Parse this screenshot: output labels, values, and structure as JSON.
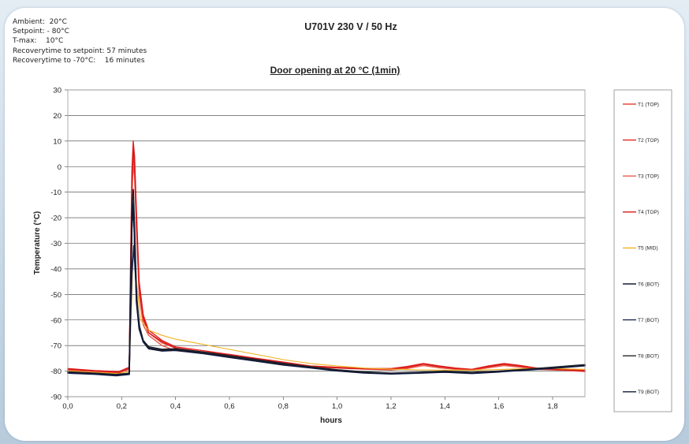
{
  "conditions": [
    "Ambient:  20°C",
    "Setpoint: - 80°C",
    "T-max:    10°C",
    "Recoverytime to setpoint: 57 minutes",
    "Recoverytime to -70°C:    16 minutes"
  ],
  "chart_data": {
    "type": "line",
    "title": "U701V 230 V / 50 Hz",
    "subtitle": "Door opening at  20 °C (1min)",
    "xlabel": "hours",
    "ylabel": "Temperature (°C)",
    "xlim": [
      0,
      1.92
    ],
    "ylim": [
      -90,
      30
    ],
    "xticks": [
      "0,0",
      "0,2",
      "0,4",
      "0,6",
      "0,8",
      "1,0",
      "1,2",
      "1,4",
      "1,6",
      "1,8"
    ],
    "yticks": [
      "30",
      "20",
      "10",
      "0",
      "-10",
      "-20",
      "-30",
      "-40",
      "-50",
      "-60",
      "-70",
      "-80",
      "-90"
    ],
    "grid": "horizontal",
    "legend_position": "right",
    "series": [
      {
        "name": "T1 (TOP)",
        "color": "#e8483c",
        "x": [
          0,
          0.1,
          0.19,
          0.228,
          0.232,
          0.238,
          0.243,
          0.248,
          0.255,
          0.265,
          0.28,
          0.3,
          0.35,
          0.4,
          0.5,
          0.6,
          0.7,
          0.8,
          0.9,
          1.0,
          1.1,
          1.2,
          1.26,
          1.32,
          1.38,
          1.44,
          1.5,
          1.56,
          1.62,
          1.68,
          1.74,
          1.8,
          1.86,
          1.92
        ],
        "y": [
          -79.5,
          -80,
          -80.5,
          -79,
          -50,
          -10,
          3,
          -2,
          -22,
          -48,
          -60,
          -65,
          -69,
          -71,
          -72.5,
          -73.5,
          -75,
          -76.5,
          -78,
          -78.5,
          -79,
          -79.3,
          -78.8,
          -77.3,
          -78.5,
          -79.2,
          -79.5,
          -78.5,
          -77.5,
          -78.3,
          -79.2,
          -79.4,
          -79.7,
          -80
        ]
      },
      {
        "name": "T2 (TOP)",
        "color": "#e02222",
        "x": [
          0,
          0.1,
          0.19,
          0.228,
          0.232,
          0.238,
          0.243,
          0.248,
          0.255,
          0.265,
          0.28,
          0.3,
          0.35,
          0.4,
          0.5,
          0.6,
          0.7,
          0.8,
          0.9,
          1.0,
          1.1,
          1.2,
          1.26,
          1.32,
          1.38,
          1.44,
          1.5,
          1.56,
          1.62,
          1.68,
          1.74,
          1.8,
          1.86,
          1.92
        ],
        "y": [
          -79,
          -79.8,
          -80.2,
          -78.5,
          -45,
          -2,
          10,
          4,
          -18,
          -45,
          -58,
          -64,
          -68,
          -70.5,
          -72,
          -73.5,
          -75,
          -76.5,
          -78,
          -78.6,
          -79,
          -79,
          -78.2,
          -77,
          -78,
          -78.8,
          -79.3,
          -78,
          -77,
          -77.8,
          -78.8,
          -79.2,
          -79.5,
          -79.7
        ]
      },
      {
        "name": "T3 (TOP)",
        "color": "#e85c4c",
        "x": [
          0,
          0.1,
          0.19,
          0.228,
          0.232,
          0.238,
          0.243,
          0.248,
          0.255,
          0.265,
          0.28,
          0.3,
          0.35,
          0.4,
          0.5,
          0.6,
          0.7,
          0.8,
          0.9,
          1.0,
          1.1,
          1.2,
          1.26,
          1.32,
          1.38,
          1.44,
          1.5,
          1.56,
          1.62,
          1.68,
          1.74,
          1.8,
          1.86,
          1.92
        ],
        "y": [
          -79.7,
          -80.3,
          -80.7,
          -79.3,
          -52,
          -12,
          1,
          -4,
          -25,
          -50,
          -62,
          -66,
          -70,
          -72,
          -73,
          -74,
          -75.5,
          -77,
          -78.3,
          -78.8,
          -79.2,
          -79.5,
          -79,
          -77.8,
          -78.7,
          -79.3,
          -79.6,
          -78.7,
          -77.8,
          -78.5,
          -79.3,
          -79.5,
          -79.8,
          -80.2
        ]
      },
      {
        "name": "T4 (TOP)",
        "color": "#d81818",
        "x": [
          0,
          0.1,
          0.19,
          0.228,
          0.232,
          0.238,
          0.243,
          0.248,
          0.255,
          0.265,
          0.28,
          0.3,
          0.35,
          0.4,
          0.5,
          0.6,
          0.7,
          0.8,
          0.9,
          1.0,
          1.1,
          1.2,
          1.26,
          1.32,
          1.38,
          1.44,
          1.5,
          1.56,
          1.62,
          1.68,
          1.74,
          1.8,
          1.86,
          1.92
        ],
        "y": [
          -79.2,
          -79.9,
          -80.4,
          -78.8,
          -48,
          -6,
          7,
          1,
          -20,
          -47,
          -59,
          -65,
          -68.5,
          -71,
          -72.5,
          -73.8,
          -75.2,
          -76.8,
          -78.2,
          -78.7,
          -79.1,
          -79.2,
          -78.5,
          -77.2,
          -78.2,
          -79,
          -79.4,
          -78.3,
          -77.2,
          -78,
          -79,
          -79.3,
          -79.6,
          -79.9
        ]
      },
      {
        "name": "T5 (MID)",
        "color": "#f2b11c",
        "x": [
          0,
          0.1,
          0.19,
          0.228,
          0.235,
          0.242,
          0.247,
          0.255,
          0.27,
          0.3,
          0.35,
          0.4,
          0.5,
          0.6,
          0.7,
          0.8,
          0.9,
          1.0,
          1.1,
          1.2,
          1.3,
          1.4,
          1.5,
          1.6,
          1.7,
          1.8,
          1.92
        ],
        "y": [
          -80,
          -80.5,
          -81,
          -80,
          -60,
          -34,
          -26,
          -45,
          -60,
          -64,
          -66,
          -67.5,
          -69.5,
          -71.5,
          -73.5,
          -75.5,
          -77,
          -78,
          -78.8,
          -79.2,
          -79.5,
          -79.6,
          -79.6,
          -79.4,
          -79,
          -79,
          -79.3
        ]
      },
      {
        "name": "T6 (BOT)",
        "color": "#141b2e",
        "x": [
          0,
          0.1,
          0.18,
          0.228,
          0.232,
          0.238,
          0.243,
          0.248,
          0.255,
          0.265,
          0.28,
          0.3,
          0.35,
          0.4,
          0.5,
          0.6,
          0.7,
          0.8,
          0.9,
          1.0,
          1.1,
          1.2,
          1.3,
          1.4,
          1.5,
          1.6,
          1.7,
          1.8,
          1.92
        ],
        "y": [
          -80.5,
          -81,
          -81.5,
          -81,
          -55,
          -18,
          -9,
          -24,
          -50,
          -62,
          -68,
          -70.5,
          -71.5,
          -71.3,
          -72.5,
          -74,
          -75.5,
          -77,
          -78.3,
          -79.5,
          -80.3,
          -80.8,
          -80.5,
          -80,
          -80.5,
          -80,
          -79.3,
          -78.5,
          -77.5
        ]
      },
      {
        "name": "T7 (BOT)",
        "color": "#1e2a52",
        "x": [
          0,
          0.1,
          0.18,
          0.228,
          0.232,
          0.238,
          0.245,
          0.25,
          0.258,
          0.268,
          0.28,
          0.3,
          0.35,
          0.4,
          0.5,
          0.6,
          0.7,
          0.8,
          0.9,
          1.0,
          1.1,
          1.2,
          1.3,
          1.4,
          1.5,
          1.6,
          1.7,
          1.8,
          1.92
        ],
        "y": [
          -80.8,
          -81.2,
          -81.8,
          -81.3,
          -62,
          -42,
          -31,
          -40,
          -55,
          -64,
          -68.5,
          -71,
          -72,
          -71.8,
          -73,
          -74.5,
          -76,
          -77.5,
          -78.6,
          -79.8,
          -80.6,
          -81,
          -80.7,
          -80.3,
          -80.8,
          -80.2,
          -79.5,
          -78.8,
          -77.8
        ]
      },
      {
        "name": "T8 (BOT)",
        "color": "#262626",
        "x": [
          0,
          0.1,
          0.18,
          0.228,
          0.232,
          0.238,
          0.243,
          0.248,
          0.255,
          0.265,
          0.28,
          0.3,
          0.35,
          0.4,
          0.5,
          0.6,
          0.7,
          0.8,
          0.9,
          1.0,
          1.1,
          1.2,
          1.3,
          1.4,
          1.5,
          1.6,
          1.7,
          1.8,
          1.92
        ],
        "y": [
          -80.3,
          -80.8,
          -81.3,
          -80.8,
          -57,
          -22,
          -13,
          -27,
          -52,
          -63,
          -68.3,
          -70.8,
          -71.8,
          -71.6,
          -72.8,
          -74.2,
          -75.7,
          -77.2,
          -78.4,
          -79.6,
          -80.4,
          -80.9,
          -80.6,
          -80.1,
          -80.6,
          -80.1,
          -79.4,
          -78.6,
          -77.6
        ]
      },
      {
        "name": "T9 (BOT)",
        "color": "#0f1838",
        "x": [
          0,
          0.1,
          0.18,
          0.228,
          0.232,
          0.238,
          0.243,
          0.248,
          0.255,
          0.265,
          0.28,
          0.3,
          0.35,
          0.4,
          0.5,
          0.6,
          0.7,
          0.8,
          0.9,
          1.0,
          1.1,
          1.2,
          1.3,
          1.4,
          1.5,
          1.6,
          1.7,
          1.8,
          1.92
        ],
        "y": [
          -80.6,
          -81.1,
          -81.6,
          -81.1,
          -58,
          -24,
          -15,
          -29,
          -53,
          -63.5,
          -68.6,
          -71.2,
          -72.1,
          -71.9,
          -73.1,
          -74.6,
          -76.1,
          -77.6,
          -78.7,
          -79.9,
          -80.7,
          -81.1,
          -80.8,
          -80.4,
          -80.9,
          -80.3,
          -79.6,
          -78.9,
          -77.9
        ]
      }
    ]
  }
}
